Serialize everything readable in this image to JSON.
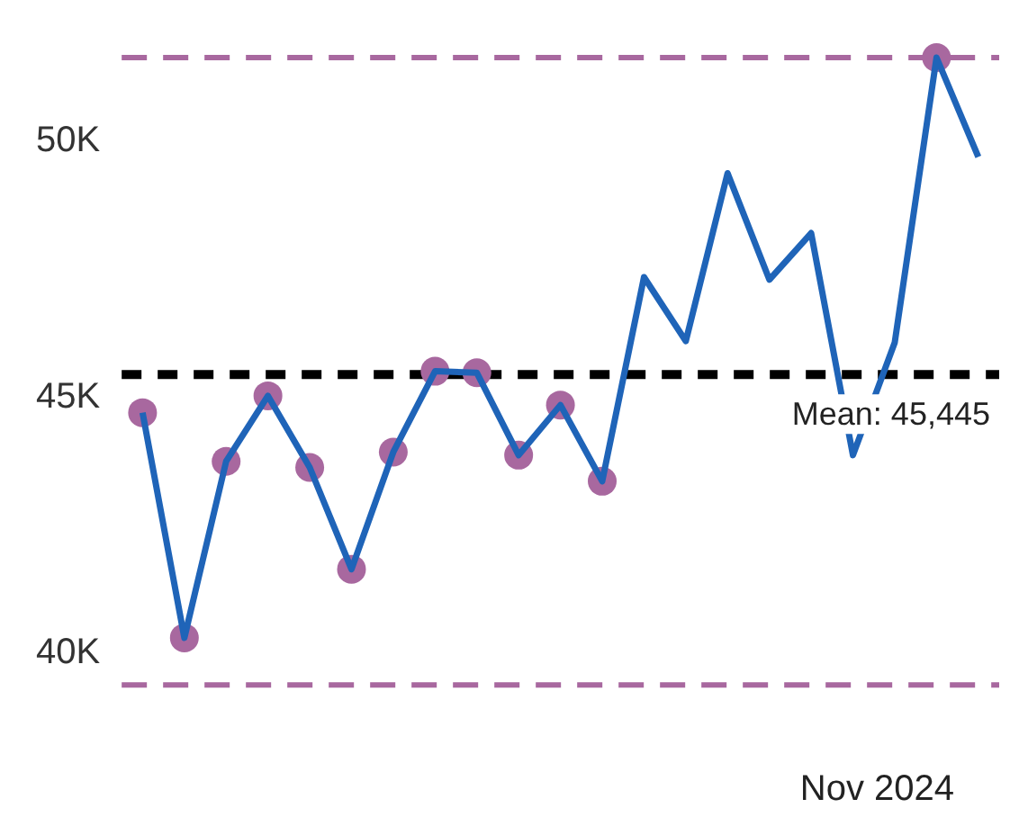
{
  "chart_data": {
    "type": "line",
    "categories": [
      null,
      null,
      null,
      null,
      null,
      null,
      null,
      null,
      null,
      null,
      null,
      null,
      null,
      null,
      null,
      null,
      null,
      null,
      null,
      null,
      null
    ],
    "series": [
      {
        "type": "line",
        "color": "#1f64b8",
        "marker": "none",
        "values": [
          44.7,
          40.3,
          43.75,
          45.03,
          43.63,
          41.64,
          43.93,
          45.51,
          45.48,
          43.87,
          44.85,
          43.36,
          47.35,
          46.1,
          49.38,
          47.3,
          48.21,
          43.87,
          46.07,
          51.64,
          49.7
        ]
      },
      {
        "type": "scatter",
        "color": "#a8689f",
        "marker": "circle",
        "values": [
          44.7,
          40.3,
          43.75,
          45.03,
          43.63,
          41.64,
          43.93,
          45.51,
          45.48,
          43.87,
          44.85,
          43.36,
          null,
          null,
          null,
          null,
          null,
          null,
          null,
          51.64,
          null
        ]
      }
    ],
    "ylim": [
      39.38,
      51.64
    ],
    "yticks": [
      {
        "value": 40,
        "label": "40K"
      },
      {
        "value": 45,
        "label": "45K"
      },
      {
        "value": 50,
        "label": "50K"
      }
    ],
    "grid": false,
    "legend": false,
    "line_style": "solid",
    "ref_lines": [
      {
        "axis": "y",
        "value": 45.445,
        "label": "Mean: 45,445",
        "color": "#000000",
        "line_style": "dashed"
      },
      {
        "axis": "y",
        "value": 51.64,
        "label": null,
        "color": "#a8689f",
        "line_style": "dashed"
      },
      {
        "axis": "y",
        "value": 39.38,
        "label": null,
        "color": "#a8689f",
        "line_style": "dashed"
      }
    ],
    "annotations": [
      "Nov 2024"
    ]
  }
}
